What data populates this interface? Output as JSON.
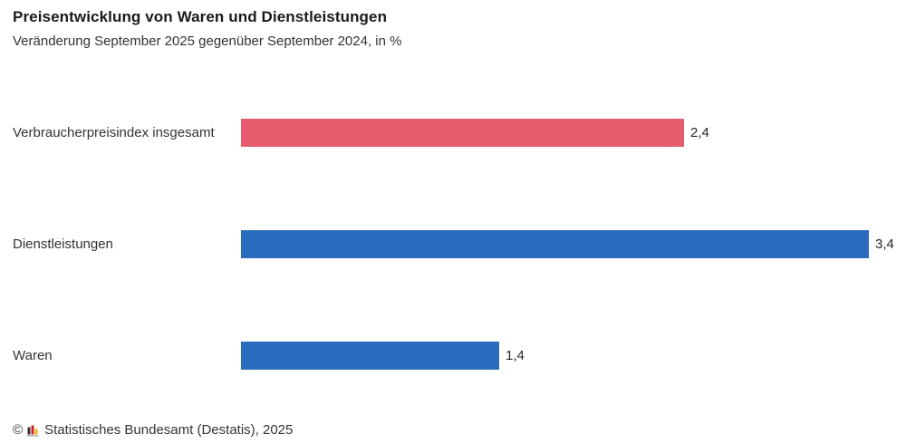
{
  "chart_data": {
    "type": "bar",
    "orientation": "horizontal",
    "title": "Preisentwicklung von Waren und Dienstleistungen",
    "subtitle": "Veränderung September 2025 gegenüber September 2024, in %",
    "categories": [
      "Verbraucherpreisindex insgesamt",
      "Dienstleistungen",
      "Waren"
    ],
    "values": [
      2.4,
      3.4,
      1.4
    ],
    "value_labels": [
      "2,4",
      "3,4",
      "1,4"
    ],
    "bar_colors": [
      "#e65c6e",
      "#2a6dbf",
      "#2a6dbf"
    ],
    "xlim": [
      0,
      3.4
    ],
    "unit": "%",
    "grid": "off",
    "legend": "none"
  },
  "footer": {
    "copyright": "©",
    "source": "Statistisches Bundesamt (Destatis), 2025",
    "logo_icon": "destatis-mini-bar-chart-icon",
    "logo_colors": {
      "bar_dark": "#333333",
      "bar_red": "#d2232a",
      "bar_gold": "#eab90c",
      "baseline": "#b5b5b5"
    }
  },
  "colors": {
    "accent_red": "#e65c6e",
    "accent_blue": "#2a6dbf",
    "title_text": "#1a1a1a",
    "body_text": "#333333",
    "background": "#ffffff"
  }
}
